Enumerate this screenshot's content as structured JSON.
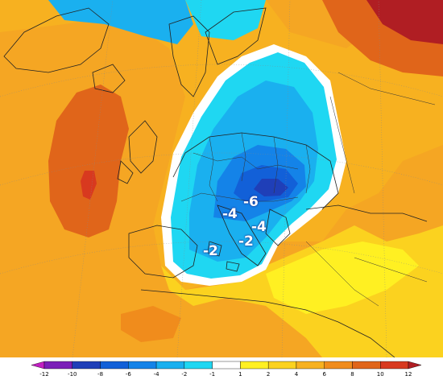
{
  "map": {
    "anomaly_labels": [
      {
        "id": "label-neg6",
        "text": "-6"
      },
      {
        "id": "label-neg4-west",
        "text": "-4"
      },
      {
        "id": "label-neg4-east",
        "text": "-4"
      },
      {
        "id": "label-neg2-west",
        "text": "-2"
      },
      {
        "id": "label-neg2-east",
        "text": "-2"
      }
    ],
    "colors": {
      "deep_red": "#b01e23",
      "red": "#d8391f",
      "dark_orange": "#e0651a",
      "orange": "#f08c1c",
      "light_orange": "#f7b120",
      "yellow": "#fbd21f",
      "bright_yellow": "#fff022",
      "white": "#ffffff",
      "cyan": "#1fd7f2",
      "light_blue": "#1ab0ef",
      "mid_blue": "#1483e8",
      "blue": "#1260d8",
      "dark_blue": "#1f3fb8",
      "purple": "#7b1fb8",
      "magenta": "#c21fc2"
    }
  },
  "colorbar": {
    "ticks": [
      "-12",
      "-10",
      "-8",
      "-6",
      "-4",
      "-2",
      "-1",
      "1",
      "2",
      "4",
      "6",
      "8",
      "10",
      "12"
    ],
    "segment_colors": [
      "#c21fc2",
      "#7b1fb8",
      "#1f3fb8",
      "#1260d8",
      "#1483e8",
      "#1ab0ef",
      "#1fd7f2",
      "#ffffff",
      "#fff022",
      "#fbd21f",
      "#f7b120",
      "#f08c1c",
      "#e0651a",
      "#d8391f",
      "#b01e23"
    ]
  }
}
